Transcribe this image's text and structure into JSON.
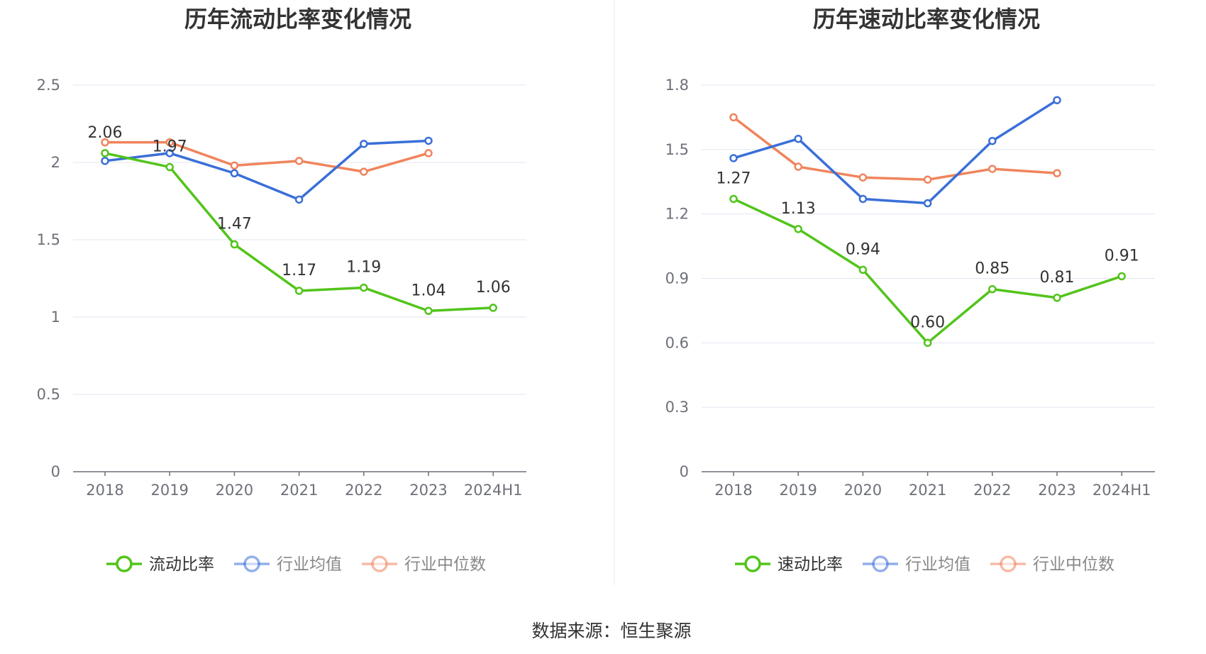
{
  "source_note": "数据来源：恒生聚源",
  "chart_data": [
    {
      "type": "line",
      "title": "历年流动比率变化情况",
      "categories": [
        "2018",
        "2019",
        "2020",
        "2021",
        "2022",
        "2023",
        "2024H1"
      ],
      "ylim": [
        0,
        2.5
      ],
      "yticks": [
        0,
        0.5,
        1,
        1.5,
        2,
        2.5
      ],
      "ytick_labels": [
        "0",
        "0.5",
        "1",
        "1.5",
        "2",
        "2.5"
      ],
      "grid": true,
      "legend_position": "bottom",
      "series": [
        {
          "name": "流动比率",
          "color": "#52c41a",
          "values": [
            2.06,
            1.97,
            1.47,
            1.17,
            1.19,
            1.04,
            1.06
          ],
          "labels": [
            "2.06",
            "1.97",
            "1.47",
            "1.17",
            "1.19",
            "1.04",
            "1.06"
          ]
        },
        {
          "name": "行业均值",
          "color": "#3a6fd8",
          "values": [
            2.01,
            2.06,
            1.93,
            1.76,
            2.12,
            2.14,
            null
          ]
        },
        {
          "name": "行业中位数",
          "color": "#f0845c",
          "values": [
            2.13,
            2.13,
            1.98,
            2.01,
            1.94,
            2.06,
            null
          ]
        }
      ]
    },
    {
      "type": "line",
      "title": "历年速动比率变化情况",
      "categories": [
        "2018",
        "2019",
        "2020",
        "2021",
        "2022",
        "2023",
        "2024H1"
      ],
      "ylim": [
        0,
        1.8
      ],
      "yticks": [
        0,
        0.3,
        0.6,
        0.9,
        1.2,
        1.5,
        1.8
      ],
      "ytick_labels": [
        "0",
        "0.3",
        "0.6",
        "0.9",
        "1.2",
        "1.5",
        "1.8"
      ],
      "grid": true,
      "legend_position": "bottom",
      "series": [
        {
          "name": "速动比率",
          "color": "#52c41a",
          "values": [
            1.27,
            1.13,
            0.94,
            0.6,
            0.85,
            0.81,
            0.91
          ],
          "labels": [
            "1.27",
            "1.13",
            "0.94",
            "0.60",
            "0.85",
            "0.81",
            "0.91"
          ]
        },
        {
          "name": "行业均值",
          "color": "#3a6fd8",
          "values": [
            1.46,
            1.55,
            1.27,
            1.25,
            1.54,
            1.73,
            null
          ]
        },
        {
          "name": "行业中位数",
          "color": "#f0845c",
          "values": [
            1.65,
            1.42,
            1.37,
            1.36,
            1.41,
            1.39,
            null
          ]
        }
      ]
    }
  ]
}
